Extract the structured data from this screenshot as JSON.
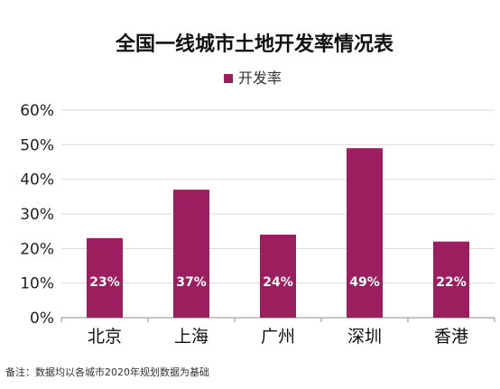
{
  "chart_data": {
    "type": "bar",
    "title": "全国一线城市土地开发率情况表",
    "categories": [
      "北京",
      "上海",
      "广州",
      "深圳",
      "香港"
    ],
    "series": [
      {
        "name": "开发率",
        "values": [
          23,
          37,
          24,
          49,
          22
        ],
        "color": "#9b1f5e"
      }
    ],
    "data_labels": [
      "23%",
      "37%",
      "24%",
      "49%",
      "22%"
    ],
    "ylim": [
      0,
      60
    ],
    "yticks": [
      0,
      10,
      20,
      30,
      40,
      50,
      60
    ],
    "ytick_labels": [
      "0%",
      "10%",
      "20%",
      "30%",
      "40%",
      "50%",
      "60%"
    ],
    "grid": true,
    "legend": "top-center"
  },
  "note": "备注：数据均以各城市2020年规划数据为基础"
}
